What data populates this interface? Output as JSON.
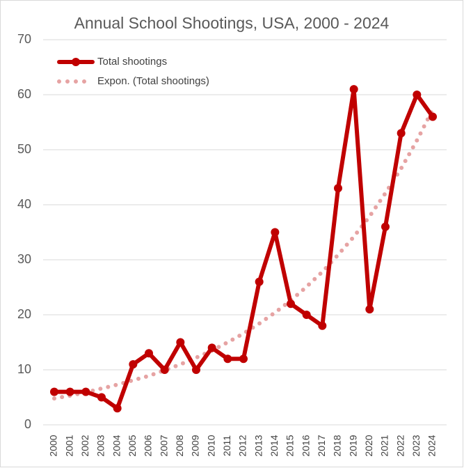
{
  "chart_data": {
    "type": "line",
    "title": "Annual School Shootings, USA, 2000 - 2024",
    "categories": [
      "2000",
      "2001",
      "2002",
      "2003",
      "2004",
      "2005",
      "2006",
      "2007",
      "2008",
      "2009",
      "2010",
      "2011",
      "2012",
      "2013",
      "2014",
      "2015",
      "2016",
      "2017",
      "2018",
      "2019",
      "2020",
      "2021",
      "2022",
      "2023",
      "2024"
    ],
    "series": [
      {
        "name": "Total shootings",
        "color": "#c00000",
        "line_style": "solid",
        "marker": true,
        "values": [
          6,
          6,
          6,
          5,
          3,
          11,
          13,
          10,
          15,
          10,
          14,
          12,
          12,
          26,
          35,
          22,
          20,
          18,
          43,
          61,
          21,
          36,
          53,
          60,
          56
        ]
      },
      {
        "name": "Expon. (Total shootings)",
        "color": "#e6a3a3",
        "line_style": "dotted",
        "marker": false,
        "values": [
          4.8,
          5.3,
          5.9,
          6.6,
          7.3,
          8.1,
          8.9,
          9.9,
          11.0,
          12.2,
          13.5,
          15.0,
          16.6,
          18.4,
          20.4,
          22.6,
          25.1,
          27.8,
          30.9,
          34.2,
          37.9,
          42.1,
          46.6,
          51.7,
          57.3
        ]
      }
    ],
    "ylim": [
      0,
      70
    ],
    "yticks": [
      0,
      10,
      20,
      30,
      40,
      50,
      60,
      70
    ],
    "grid": true,
    "legend": "top-left"
  }
}
